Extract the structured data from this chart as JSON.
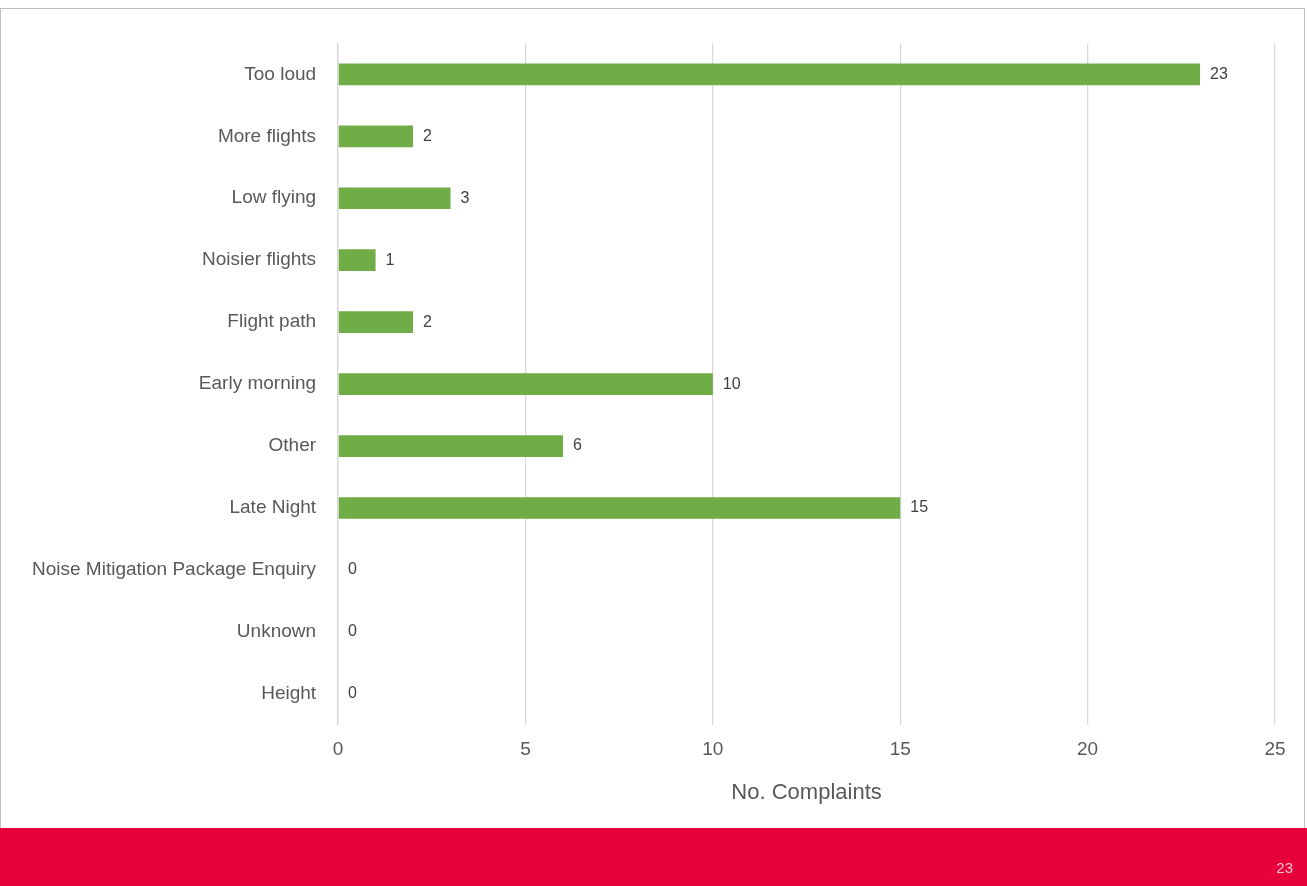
{
  "chart_data": {
    "type": "bar",
    "orientation": "horizontal",
    "categories": [
      "Too loud",
      "More flights",
      "Low flying",
      "Noisier flights",
      "Flight path",
      "Early morning",
      "Other",
      "Late Night",
      "Noise Mitigation Package Enquiry",
      "Unknown",
      "Height"
    ],
    "values": [
      23,
      2,
      3,
      1,
      2,
      10,
      6,
      15,
      0,
      0,
      0
    ],
    "color": "#70ad47",
    "xlim": [
      0,
      25
    ],
    "xticks": [
      0,
      5,
      10,
      15,
      20,
      25
    ],
    "xlabel": "No. Complaints",
    "grid": "x",
    "legend": false,
    "data_labels": true,
    "annotations": [
      "23"
    ]
  }
}
